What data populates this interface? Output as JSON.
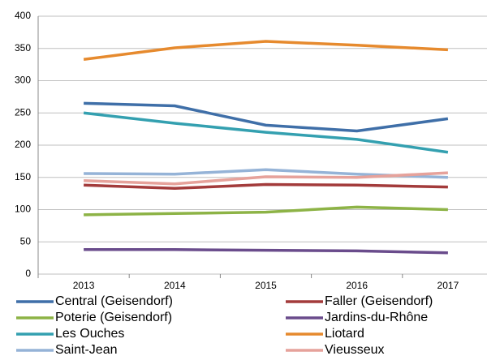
{
  "chart_data": {
    "type": "line",
    "categories": [
      "2013",
      "2014",
      "2015",
      "2016",
      "2017"
    ],
    "ylim": [
      0,
      400
    ],
    "yticks": [
      0,
      50,
      100,
      150,
      200,
      250,
      300,
      350,
      400
    ],
    "grid": true,
    "series": [
      {
        "name": "Central (Geisendorf)",
        "color": "#3f6fa8",
        "values": [
          265,
          261,
          231,
          222,
          241
        ]
      },
      {
        "name": "Faller (Geisendorf)",
        "color": "#a33b3b",
        "values": [
          138,
          133,
          139,
          138,
          135
        ]
      },
      {
        "name": "Poterie (Geisendorf)",
        "color": "#8db346",
        "values": [
          92,
          94,
          96,
          104,
          100
        ]
      },
      {
        "name": "Jardins-du-Rhône",
        "color": "#6a4c8c",
        "values": [
          38,
          38,
          37,
          36,
          33
        ]
      },
      {
        "name": "Les Ouches",
        "color": "#34a0b0",
        "values": [
          250,
          234,
          220,
          209,
          189
        ]
      },
      {
        "name": "Liotard",
        "color": "#e68a2e",
        "values": [
          333,
          351,
          361,
          355,
          348
        ]
      },
      {
        "name": "Saint-Jean",
        "color": "#95b3d7",
        "values": [
          156,
          155,
          162,
          155,
          150
        ]
      },
      {
        "name": "Vieusseux",
        "color": "#e6a29b",
        "values": [
          145,
          140,
          151,
          150,
          157
        ]
      }
    ]
  }
}
